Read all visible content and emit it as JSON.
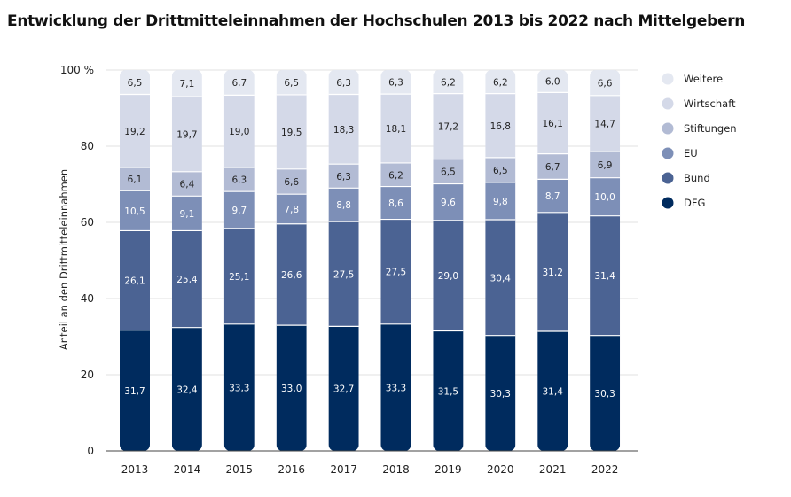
{
  "chart_data": {
    "type": "bar",
    "stacked": true,
    "title": "Entwicklung der Drittmitteleinnahmen der Hochschulen 2013 bis 2022 nach Mittelgebern",
    "ylabel": "Anteil an den Drittmitteleinnahmen",
    "xlabel": "",
    "ylim": [
      0,
      100
    ],
    "yticks": [
      "0",
      "20",
      "40",
      "60",
      "80",
      "100 %"
    ],
    "categories": [
      "2013",
      "2014",
      "2015",
      "2016",
      "2017",
      "2018",
      "2019",
      "2020",
      "2021",
      "2022"
    ],
    "series": [
      {
        "name": "DFG",
        "color": "#002b5e",
        "label_color": "#ffffff",
        "values": [
          31.7,
          32.4,
          33.3,
          33.0,
          32.7,
          33.3,
          31.5,
          30.3,
          31.4,
          30.3
        ],
        "labels": [
          "31,7",
          "32,4",
          "33,3",
          "33,0",
          "32,7",
          "33,3",
          "31,5",
          "30,3",
          "31,4",
          "30,3"
        ]
      },
      {
        "name": "Bund",
        "color": "#4b6393",
        "label_color": "#ffffff",
        "values": [
          26.1,
          25.4,
          25.1,
          26.6,
          27.5,
          27.5,
          29.0,
          30.4,
          31.2,
          31.4
        ],
        "labels": [
          "26,1",
          "25,4",
          "25,1",
          "26,6",
          "27,5",
          "27,5",
          "29,0",
          "30,4",
          "31,2",
          "31,4"
        ]
      },
      {
        "name": "EU",
        "color": "#7d8fb7",
        "label_color": "#ffffff",
        "values": [
          10.5,
          9.1,
          9.7,
          7.8,
          8.8,
          8.6,
          9.6,
          9.8,
          8.7,
          10.0
        ],
        "labels": [
          "10,5",
          "9,1",
          "9,7",
          "7,8",
          "8,8",
          "8,6",
          "9,6",
          "9,8",
          "8,7",
          "10,0"
        ]
      },
      {
        "name": "Stiftungen",
        "color": "#b2bbd4",
        "label_color": "#222222",
        "values": [
          6.1,
          6.4,
          6.3,
          6.6,
          6.3,
          6.2,
          6.5,
          6.5,
          6.7,
          6.9
        ],
        "labels": [
          "6,1",
          "6,4",
          "6,3",
          "6,6",
          "6,3",
          "6,2",
          "6,5",
          "6,5",
          "6,7",
          "6,9"
        ]
      },
      {
        "name": "Wirtschaft",
        "color": "#d4d9e8",
        "label_color": "#222222",
        "values": [
          19.2,
          19.7,
          19.0,
          19.5,
          18.3,
          18.1,
          17.2,
          16.8,
          16.1,
          14.7
        ],
        "labels": [
          "19,2",
          "19,7",
          "19,0",
          "19,5",
          "18,3",
          "18,1",
          "17,2",
          "16,8",
          "16,1",
          "14,7"
        ]
      },
      {
        "name": "Weitere",
        "color": "#e4e8f1",
        "label_color": "#222222",
        "values": [
          6.5,
          7.1,
          6.7,
          6.5,
          6.3,
          6.3,
          6.2,
          6.2,
          6.0,
          6.6
        ],
        "labels": [
          "6,5",
          "7,1",
          "6,7",
          "6,5",
          "6,3",
          "6,3",
          "6,2",
          "6,2",
          "6,0",
          "6,6"
        ]
      }
    ],
    "legend_order": [
      "Weitere",
      "Wirtschaft",
      "Stiftungen",
      "EU",
      "Bund",
      "DFG"
    ],
    "legend_position": "right",
    "grid": true
  }
}
